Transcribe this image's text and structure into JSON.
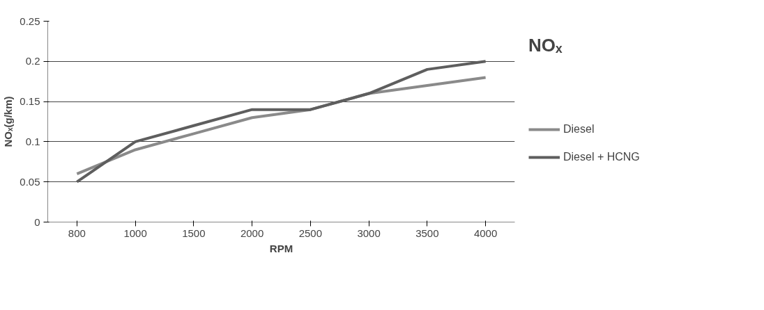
{
  "chart_data": {
    "type": "line",
    "title": "NOₓ",
    "xlabel": "RPM",
    "ylabel": "NOₓ(g/km)",
    "categories": [
      "800",
      "1000",
      "1500",
      "2000",
      "2500",
      "3000",
      "3500",
      "4000"
    ],
    "series": [
      {
        "name": "Diesel",
        "color": "#8a8a8a",
        "values": [
          0.06,
          0.09,
          0.11,
          0.13,
          0.14,
          0.16,
          0.17,
          0.18
        ]
      },
      {
        "name": "Diesel + HCNG",
        "color": "#5e5e5e",
        "values": [
          0.05,
          0.1,
          0.12,
          0.14,
          0.14,
          0.16,
          0.19,
          0.2
        ]
      }
    ],
    "ylim": [
      0,
      0.25
    ],
    "yticks": [
      0,
      0.05,
      0.1,
      0.15,
      0.2,
      0.25
    ],
    "grid": "y",
    "legend": "right",
    "marker": "none",
    "line_style": "solid"
  }
}
